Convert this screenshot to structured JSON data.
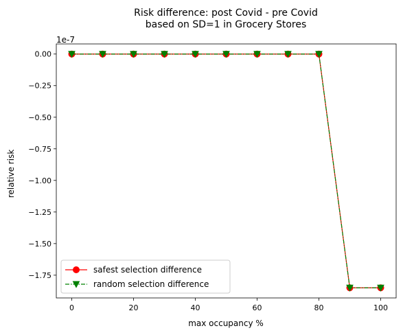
{
  "chart_data": {
    "type": "line",
    "title_line1": "Risk difference: post Covid - pre Covid",
    "title_line2": "based on SD=1 in Grocery Stores",
    "xlabel": "max occupancy %",
    "ylabel": "relative risk",
    "y_offset_label": "1e-7",
    "x": [
      0,
      10,
      20,
      30,
      40,
      50,
      60,
      70,
      80,
      90,
      100
    ],
    "xlim": [
      -5,
      105
    ],
    "ylim": [
      -1.93,
      0.08
    ],
    "x_ticks": [
      0,
      20,
      40,
      60,
      80,
      100
    ],
    "x_tick_labels": [
      "0",
      "20",
      "40",
      "60",
      "80",
      "100"
    ],
    "y_ticks": [
      0.0,
      -0.25,
      -0.5,
      -0.75,
      -1.0,
      -1.25,
      -1.5,
      -1.75
    ],
    "y_tick_labels": [
      "0.00",
      "−0.25",
      "−0.50",
      "−0.75",
      "−1.00",
      "−1.25",
      "−1.50",
      "−1.75"
    ],
    "grid": false,
    "legend_position": "lower-left",
    "series": [
      {
        "name": "safest selection difference",
        "values": [
          0,
          0,
          0,
          0,
          0,
          0,
          0,
          0,
          0,
          -1.85,
          -1.85
        ],
        "color": "#ff0000",
        "marker_color": "#ff0000",
        "line_style": "solid",
        "marker": "circle"
      },
      {
        "name": "random selection difference",
        "values": [
          0,
          0,
          0,
          0,
          0,
          0,
          0,
          0,
          0,
          -1.85,
          -1.85
        ],
        "color": "#008000",
        "marker_color": "#008000",
        "line_style": "dashdot",
        "marker": "triangle-down"
      }
    ]
  }
}
